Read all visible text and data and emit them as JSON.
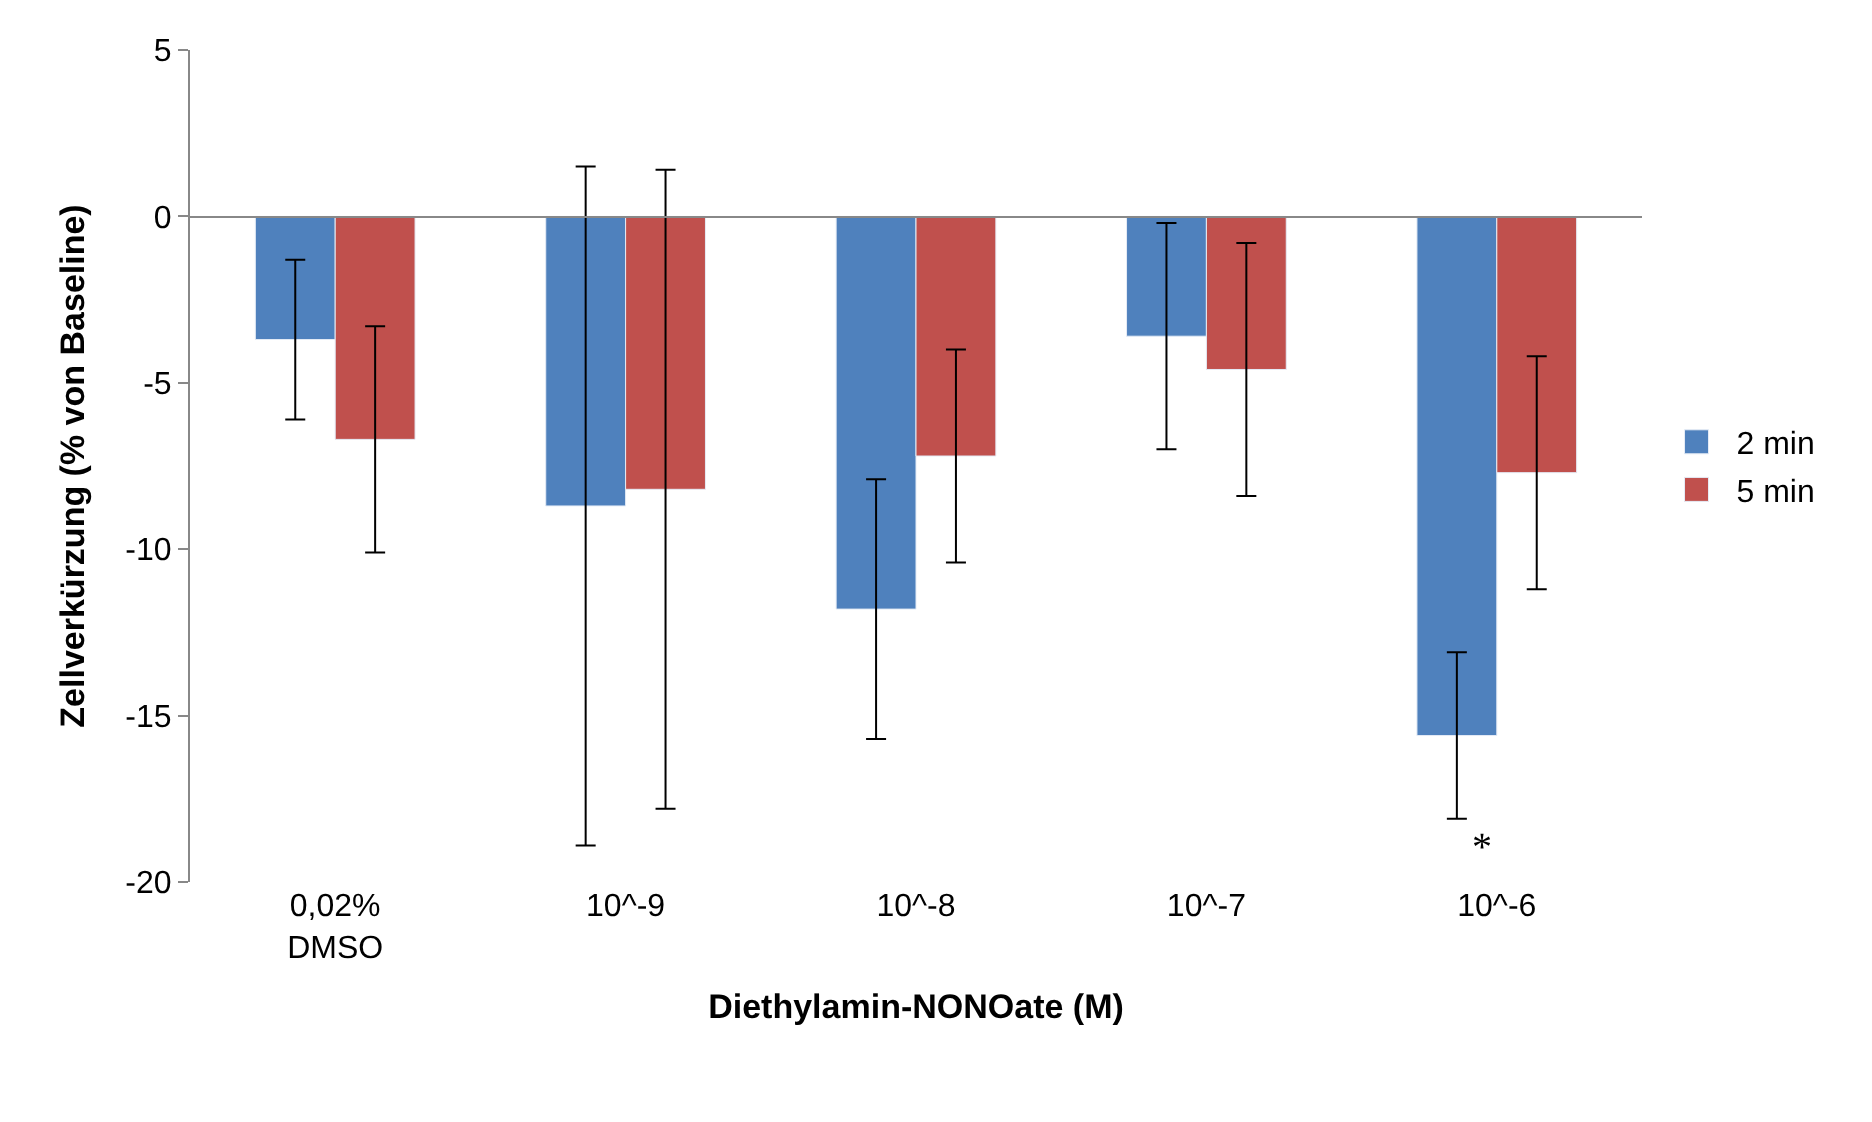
{
  "chart_data": {
    "type": "bar",
    "xlabel": "Diethylamin-NONOate (M)",
    "ylabel": "Zellverkürzung (% von Baseline)",
    "categories": [
      "0,02%\nDMSO",
      "10^-9",
      "10^-8",
      "10^-7",
      "10^-6"
    ],
    "series": [
      {
        "name": "2 min",
        "color": "#4f81bd",
        "values": [
          -3.7,
          -8.7,
          -11.8,
          -3.6,
          -15.6
        ],
        "errors": [
          2.4,
          10.2,
          3.9,
          3.4,
          2.5
        ]
      },
      {
        "name": "5 min",
        "color": "#c0504d",
        "values": [
          -6.7,
          -8.2,
          -7.2,
          -4.6,
          -7.7
        ],
        "errors": [
          3.4,
          9.6,
          3.2,
          3.8,
          3.5
        ]
      }
    ],
    "ylim": [
      -20,
      5
    ],
    "yticks": [
      -20,
      -15,
      -10,
      -5,
      0,
      5
    ],
    "legend": "right",
    "annotations": [
      "*"
    ]
  }
}
